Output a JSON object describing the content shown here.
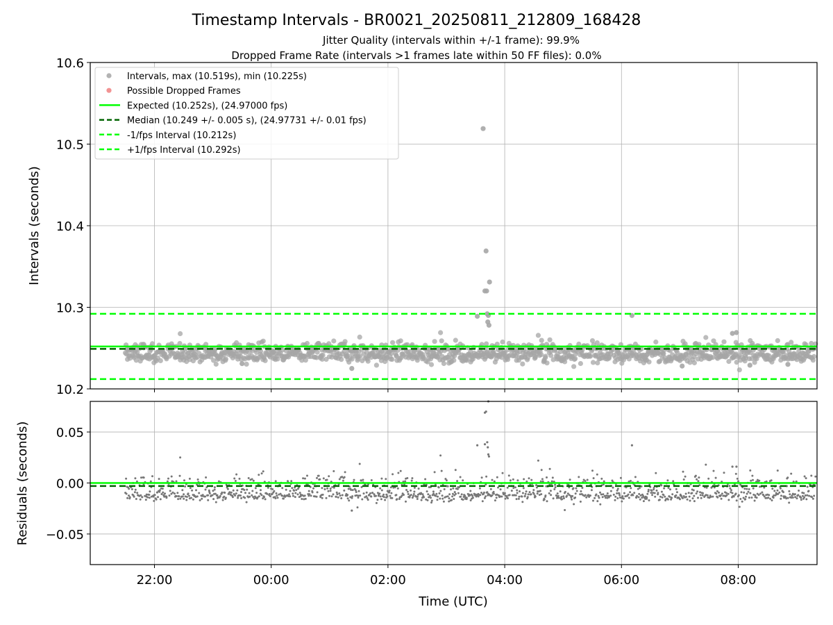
{
  "chart_data": [
    {
      "type": "scatter",
      "title": "Timestamp Intervals - BR0021_20250811_212809_168428",
      "subtitle_lines": [
        "Jitter Quality (intervals within +/-1 frame): 99.9%",
        "Dropped Frame Rate (intervals >1 frames late within 50 FF files): 0.0%"
      ],
      "ylabel": "Intervals (seconds)",
      "ylim": [
        10.2,
        10.6
      ],
      "yticks": [
        "10.2",
        "10.3",
        "10.4",
        "10.5",
        "10.6"
      ],
      "ytick_values": [
        10.2,
        10.3,
        10.4,
        10.5,
        10.6
      ],
      "x_hours_range": [
        20.9,
        33.35
      ],
      "grid": true,
      "legend_position": "top-left",
      "legend": [
        {
          "label": "Intervals, max (10.519s), min (10.225s)",
          "kind": "dot",
          "color": "#a6a6a6"
        },
        {
          "label": "Possible Dropped Frames",
          "kind": "dot",
          "color": "#f08080"
        },
        {
          "label": "Expected (10.252s), (24.97000 fps)",
          "kind": "solid",
          "color": "#00ff00"
        },
        {
          "label": "Median (10.249 +/- 0.005 s), (24.97731 +/- 0.01 fps)",
          "kind": "dashed",
          "color": "#006400"
        },
        {
          "label": "-1/fps Interval (10.212s)",
          "kind": "dashed",
          "color": "#00ff00"
        },
        {
          "label": "+1/fps Interval (10.292s)",
          "kind": "dashed",
          "color": "#00ff00"
        }
      ],
      "reference_lines": [
        {
          "name": "expected",
          "y": 10.252,
          "style": "solid",
          "color": "#00ff00"
        },
        {
          "name": "median",
          "y": 10.249,
          "style": "dashed",
          "color": "#006400"
        },
        {
          "name": "minus_one_fps",
          "y": 10.212,
          "style": "dashed",
          "color": "#00ff00"
        },
        {
          "name": "plus_one_fps",
          "y": 10.292,
          "style": "dashed",
          "color": "#00ff00"
        }
      ],
      "series": [
        {
          "name": "Intervals",
          "color": "#a6a6a6",
          "x_start_hours": 21.5,
          "x_end_hours": 33.35,
          "bands": [
            {
              "y_center": 10.239,
              "spread": 0.003
            },
            {
              "y_center": 10.249,
              "spread": 0.004
            }
          ],
          "outliers": [
            {
              "x_hours": 27.63,
              "y": 10.519
            },
            {
              "x_hours": 27.68,
              "y": 10.369
            },
            {
              "x_hours": 27.74,
              "y": 10.331
            },
            {
              "x_hours": 27.66,
              "y": 10.32
            },
            {
              "x_hours": 27.69,
              "y": 10.32
            },
            {
              "x_hours": 27.7,
              "y": 10.292
            },
            {
              "x_hours": 27.72,
              "y": 10.29
            },
            {
              "x_hours": 27.53,
              "y": 10.289
            },
            {
              "x_hours": 27.71,
              "y": 10.282
            },
            {
              "x_hours": 27.73,
              "y": 10.278
            },
            {
              "x_hours": 30.18,
              "y": 10.29
            },
            {
              "x_hours": 25.38,
              "y": 10.225
            },
            {
              "x_hours": 23.5,
              "y": 10.231
            },
            {
              "x_hours": 31.04,
              "y": 10.228
            },
            {
              "x_hours": 32.2,
              "y": 10.229
            },
            {
              "x_hours": 32.85,
              "y": 10.23
            },
            {
              "x_hours": 31.9,
              "y": 10.268
            },
            {
              "x_hours": 31.97,
              "y": 10.269
            }
          ]
        }
      ]
    },
    {
      "type": "scatter",
      "ylabel": "Residuals (seconds)",
      "xlabel": "Time (UTC)",
      "ylim": [
        -0.08,
        0.08
      ],
      "yticks": [
        "−0.05",
        "0.00",
        "0.05"
      ],
      "ytick_values": [
        -0.05,
        0.0,
        0.05
      ],
      "xticks": [
        "22:00",
        "00:00",
        "02:00",
        "04:00",
        "06:00",
        "08:00"
      ],
      "xtick_hours": [
        22,
        24,
        26,
        28,
        30,
        32
      ],
      "x_hours_range": [
        20.9,
        33.35
      ],
      "grid": true,
      "reference_lines": [
        {
          "name": "expected",
          "y": 0.0,
          "style": "solid",
          "color": "#00ff00"
        },
        {
          "name": "median",
          "y": -0.003,
          "style": "dashed",
          "color": "#006400"
        }
      ],
      "series": [
        {
          "name": "Residuals",
          "color": "#777777",
          "x_start_hours": 21.5,
          "x_end_hours": 33.35,
          "bands": [
            {
              "y_center": -0.013,
              "spread": 0.002
            },
            {
              "y_center": -0.003,
              "spread": 0.006
            }
          ],
          "outliers": [
            {
              "x_hours": 27.72,
              "y": 0.08
            },
            {
              "x_hours": 27.66,
              "y": 0.069
            },
            {
              "x_hours": 27.68,
              "y": 0.07
            },
            {
              "x_hours": 27.53,
              "y": 0.037
            },
            {
              "x_hours": 27.66,
              "y": 0.038
            },
            {
              "x_hours": 27.7,
              "y": 0.04
            },
            {
              "x_hours": 27.71,
              "y": 0.035
            },
            {
              "x_hours": 27.72,
              "y": 0.028
            },
            {
              "x_hours": 27.73,
              "y": 0.026
            },
            {
              "x_hours": 30.18,
              "y": 0.037
            },
            {
              "x_hours": 25.38,
              "y": -0.027
            },
            {
              "x_hours": 31.9,
              "y": 0.016
            },
            {
              "x_hours": 31.97,
              "y": 0.016
            }
          ]
        }
      ]
    }
  ]
}
